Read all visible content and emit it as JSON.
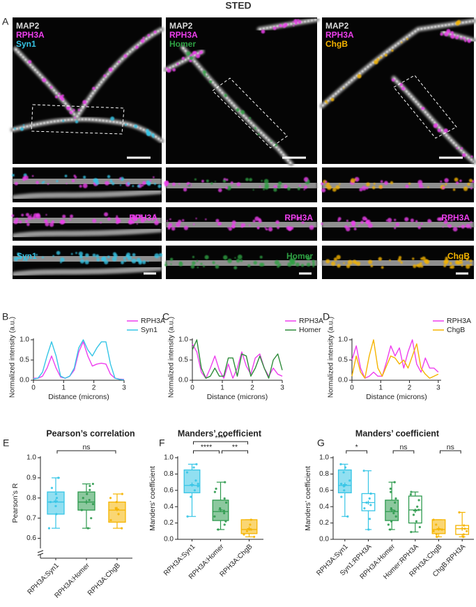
{
  "title": "STED",
  "panel_A": {
    "label": "A",
    "columns": [
      {
        "channels": [
          {
            "name": "MAP2",
            "color": "#d9d9d9"
          },
          {
            "name": "RPH3A",
            "color": "#ee3fee"
          },
          {
            "name": "Syn1",
            "color": "#36c5e6"
          }
        ]
      },
      {
        "channels": [
          {
            "name": "MAP2",
            "color": "#d9d9d9"
          },
          {
            "name": "RPH3A",
            "color": "#ee3fee"
          },
          {
            "name": "Homer",
            "color": "#2ea043"
          }
        ]
      },
      {
        "channels": [
          {
            "name": "MAP2",
            "color": "#d9d9d9"
          },
          {
            "name": "RPH3A",
            "color": "#ee3fee"
          },
          {
            "name": "ChgB",
            "color": "#f5b400"
          }
        ]
      }
    ]
  },
  "chart_data": [
    {
      "type": "line",
      "panel": "B",
      "x_label": "Distance (microns)",
      "y_label": "Normalized intensity (a.u.)",
      "x": [
        0,
        0.15,
        0.3,
        0.45,
        0.6,
        0.75,
        0.9,
        1.05,
        1.2,
        1.35,
        1.5,
        1.65,
        1.8,
        1.95,
        2.1,
        2.25,
        2.4,
        2.55,
        2.7,
        2.85,
        3.0
      ],
      "series": [
        {
          "name": "RPH3A",
          "color": "#ee3fee",
          "values": [
            0.05,
            0.05,
            0.1,
            0.3,
            0.6,
            0.3,
            0.08,
            0.05,
            0.1,
            0.25,
            0.7,
            0.95,
            0.6,
            0.35,
            0.4,
            0.42,
            0.4,
            0.15,
            0.05,
            0.03,
            0.02
          ]
        },
        {
          "name": "Syn1",
          "color": "#36c5e6",
          "values": [
            0.03,
            0.05,
            0.2,
            0.6,
            0.95,
            0.6,
            0.1,
            0.05,
            0.1,
            0.3,
            0.8,
            1.0,
            0.75,
            0.6,
            0.8,
            0.95,
            0.95,
            0.4,
            0.05,
            0.02,
            0.01
          ]
        }
      ],
      "xlim": [
        0,
        3
      ],
      "xticks": [
        0,
        1,
        2,
        3
      ],
      "ylim": [
        0,
        1
      ],
      "yticks": [
        {
          "value": 0,
          "label": "0.0"
        },
        {
          "value": 0.5,
          "label": "0.5"
        },
        {
          "value": 1,
          "label": "1.0"
        }
      ]
    },
    {
      "type": "line",
      "panel": "C",
      "x_label": "Distance (microns)",
      "y_label": "Normalized intensity (a.u.)",
      "x": [
        0,
        0.15,
        0.3,
        0.45,
        0.6,
        0.75,
        0.9,
        1.05,
        1.2,
        1.35,
        1.5,
        1.65,
        1.8,
        1.95,
        2.1,
        2.25,
        2.4,
        2.55,
        2.7,
        2.85,
        3.0
      ],
      "series": [
        {
          "name": "RPH3A",
          "color": "#ee3fee",
          "values": [
            0.9,
            0.7,
            0.2,
            0.05,
            0.3,
            0.6,
            0.25,
            0.05,
            0.4,
            0.05,
            0.3,
            0.7,
            0.35,
            0.15,
            0.55,
            0.65,
            0.3,
            0.1,
            0.3,
            0.15,
            0.1
          ]
        },
        {
          "name": "Homer",
          "color": "#2e8b3a",
          "values": [
            0.75,
            1.0,
            0.3,
            0.05,
            0.1,
            0.3,
            0.1,
            0.1,
            0.55,
            0.55,
            0.1,
            0.65,
            0.6,
            0.1,
            0.3,
            0.6,
            0.3,
            0.05,
            0.5,
            0.65,
            0.25
          ]
        }
      ],
      "xlim": [
        0,
        3
      ],
      "xticks": [
        0,
        1,
        2,
        3
      ],
      "ylim": [
        0,
        1
      ],
      "yticks": [
        {
          "value": 0,
          "label": "0.0"
        },
        {
          "value": 0.5,
          "label": "0.5"
        },
        {
          "value": 1,
          "label": "1.0"
        }
      ]
    },
    {
      "type": "line",
      "panel": "D",
      "x_label": "Distance (microns)",
      "y_label": "Normalized intensity (a.u.)",
      "x": [
        0,
        0.15,
        0.3,
        0.45,
        0.6,
        0.75,
        0.9,
        1.05,
        1.2,
        1.35,
        1.5,
        1.65,
        1.8,
        1.95,
        2.1,
        2.25,
        2.4,
        2.55,
        2.7,
        2.85,
        3.0
      ],
      "series": [
        {
          "name": "RPH3A",
          "color": "#ee3fee",
          "values": [
            0.5,
            0.85,
            0.3,
            0.05,
            0.1,
            0.2,
            0.1,
            0.1,
            0.45,
            0.85,
            0.6,
            0.8,
            0.3,
            0.7,
            1.0,
            0.4,
            0.2,
            0.55,
            0.3,
            0.3,
            0.2
          ]
        },
        {
          "name": "ChgB",
          "color": "#f5b400",
          "values": [
            0.1,
            0.6,
            0.2,
            0.05,
            0.6,
            1.0,
            0.3,
            0.1,
            0.35,
            0.6,
            0.55,
            0.4,
            0.5,
            0.3,
            0.6,
            0.9,
            0.3,
            0.15,
            0.05,
            0.1,
            0.15
          ]
        }
      ],
      "xlim": [
        0,
        3.1
      ],
      "xticks": [
        0,
        1,
        2,
        3
      ],
      "ylim": [
        0,
        1
      ],
      "yticks": [
        {
          "value": 0,
          "label": "0.0"
        },
        {
          "value": 0.5,
          "label": "0.5"
        },
        {
          "value": 1,
          "label": "1.0"
        }
      ]
    },
    {
      "type": "box",
      "panel": "E",
      "title": "Pearson’s correlation",
      "y_label": "Pearson’s R",
      "categories": [
        "RPH3A:Syn1",
        "RPH3A:Homer",
        "RPH3A:ChgB"
      ],
      "boxes": [
        {
          "min": 0.65,
          "q1": 0.72,
          "median": 0.78,
          "q3": 0.83,
          "max": 0.9,
          "mean": 0.785,
          "color": "#36c5e6",
          "filled": true,
          "points": [
            0.65,
            0.72,
            0.76,
            0.78,
            0.8,
            0.82,
            0.85,
            0.9
          ]
        },
        {
          "min": 0.65,
          "q1": 0.74,
          "median": 0.78,
          "q3": 0.83,
          "max": 0.87,
          "mean": 0.78,
          "color": "#2e9a4e",
          "filled": true,
          "points": [
            0.65,
            0.7,
            0.74,
            0.77,
            0.79,
            0.8,
            0.82,
            0.84,
            0.86,
            0.87
          ]
        },
        {
          "min": 0.65,
          "q1": 0.68,
          "median": 0.74,
          "q3": 0.78,
          "max": 0.82,
          "mean": 0.745,
          "color": "#f5b400",
          "filled": true,
          "points": [
            0.65,
            0.69,
            0.72,
            0.75,
            0.78,
            0.8,
            0.82
          ]
        }
      ],
      "brackets": [
        {
          "categories": [
            "RPH3A:Syn1",
            "RPH3A:ChgB"
          ],
          "label": "ns"
        }
      ],
      "ylim": [
        0.55,
        1.0
      ],
      "axis_break": true,
      "yticks": [
        {
          "value": 0.6,
          "label": "0.6"
        },
        {
          "value": 0.7,
          "label": "0.7"
        },
        {
          "value": 0.8,
          "label": "0.8"
        },
        {
          "value": 0.9,
          "label": "0.9"
        },
        {
          "value": 1.0,
          "label": "1.0"
        }
      ]
    },
    {
      "type": "box",
      "panel": "F",
      "title": "Manders’ coefficient",
      "y_label": "Manders’ coefficient",
      "categories": [
        "RPH3A:Syn1",
        "RPH3A:Homer",
        "RPH3A:ChgB"
      ],
      "boxes": [
        {
          "min": 0.28,
          "q1": 0.57,
          "median": 0.66,
          "q3": 0.85,
          "max": 0.92,
          "mean": 0.67,
          "color": "#36c5e6",
          "filled": true,
          "points": [
            0.28,
            0.52,
            0.6,
            0.65,
            0.68,
            0.72,
            0.82,
            0.88,
            0.92
          ]
        },
        {
          "min": 0.12,
          "q1": 0.23,
          "median": 0.34,
          "q3": 0.48,
          "max": 0.7,
          "mean": 0.36,
          "color": "#2e9a4e",
          "filled": true,
          "points": [
            0.12,
            0.18,
            0.22,
            0.28,
            0.32,
            0.35,
            0.38,
            0.45,
            0.5,
            0.58,
            0.62,
            0.7
          ]
        },
        {
          "min": 0.03,
          "q1": 0.07,
          "median": 0.12,
          "q3": 0.24,
          "max": 0.24,
          "mean": 0.13,
          "color": "#f5b400",
          "filled": true,
          "points": [
            0.03,
            0.06,
            0.1,
            0.12,
            0.18,
            0.24
          ]
        }
      ],
      "brackets": [
        {
          "categories": [
            "RPH3A:Syn1",
            "RPH3A:Homer"
          ],
          "label": "****"
        },
        {
          "categories": [
            "RPH3A:Homer",
            "RPH3A:ChgB"
          ],
          "label": "**"
        },
        {
          "categories": [
            "RPH3A:Syn1",
            "RPH3A:ChgB"
          ],
          "label": "****"
        }
      ],
      "ylim": [
        0,
        1.0
      ],
      "yticks": [
        {
          "value": 0,
          "label": "0.0"
        },
        {
          "value": 0.2,
          "label": "0.2"
        },
        {
          "value": 0.4,
          "label": "0.4"
        },
        {
          "value": 0.6,
          "label": "0.6"
        },
        {
          "value": 0.8,
          "label": "0.8"
        },
        {
          "value": 1.0,
          "label": "1.0"
        }
      ]
    },
    {
      "type": "box",
      "panel": "G",
      "title": "Manders’ coefficient",
      "y_label": "Manders’ coefficient",
      "categories": [
        "RPH3A:Syn1",
        "Syn1:RPH3A",
        "RPH3A:Homer",
        "Homer:RPH3A",
        "RPH3A:ChgB",
        "ChgB:RPH3A"
      ],
      "boxes": [
        {
          "min": 0.28,
          "q1": 0.57,
          "median": 0.66,
          "q3": 0.85,
          "max": 0.92,
          "mean": 0.67,
          "color": "#36c5e6",
          "filled": true,
          "points": [
            0.28,
            0.52,
            0.6,
            0.65,
            0.68,
            0.72,
            0.82,
            0.88,
            0.92
          ]
        },
        {
          "min": 0.12,
          "q1": 0.35,
          "median": 0.45,
          "q3": 0.56,
          "max": 0.84,
          "mean": 0.45,
          "color": "#36c5e6",
          "filled": false,
          "points": [
            0.12,
            0.25,
            0.38,
            0.42,
            0.45,
            0.5,
            0.56,
            0.84
          ]
        },
        {
          "min": 0.12,
          "q1": 0.23,
          "median": 0.34,
          "q3": 0.48,
          "max": 0.7,
          "mean": 0.36,
          "color": "#2e9a4e",
          "filled": true,
          "points": [
            0.12,
            0.18,
            0.22,
            0.28,
            0.32,
            0.35,
            0.38,
            0.45,
            0.5,
            0.58,
            0.62,
            0.7
          ]
        },
        {
          "min": 0.09,
          "q1": 0.2,
          "median": 0.36,
          "q3": 0.53,
          "max": 0.58,
          "mean": 0.35,
          "color": "#2e9a4e",
          "filled": false,
          "points": [
            0.09,
            0.15,
            0.22,
            0.3,
            0.36,
            0.4,
            0.48,
            0.55,
            0.58
          ]
        },
        {
          "min": 0.03,
          "q1": 0.07,
          "median": 0.12,
          "q3": 0.24,
          "max": 0.24,
          "mean": 0.13,
          "color": "#f5b400",
          "filled": true,
          "points": [
            0.03,
            0.06,
            0.1,
            0.12,
            0.18,
            0.24
          ]
        },
        {
          "min": 0.03,
          "q1": 0.06,
          "median": 0.13,
          "q3": 0.17,
          "max": 0.33,
          "mean": 0.13,
          "color": "#f5b400",
          "filled": false,
          "points": [
            0.03,
            0.06,
            0.1,
            0.13,
            0.17,
            0.33
          ]
        }
      ],
      "brackets": [
        {
          "categories": [
            "RPH3A:Syn1",
            "Syn1:RPH3A"
          ],
          "label": "*"
        },
        {
          "categories": [
            "RPH3A:Homer",
            "Homer:RPH3A"
          ],
          "label": "ns"
        },
        {
          "categories": [
            "RPH3A:ChgB",
            "ChgB:RPH3A"
          ],
          "label": "ns"
        }
      ],
      "ylim": [
        0,
        1.0
      ],
      "yticks": [
        {
          "value": 0,
          "label": "0.0"
        },
        {
          "value": 0.2,
          "label": "0.2"
        },
        {
          "value": 0.4,
          "label": "0.4"
        },
        {
          "value": 0.6,
          "label": "0.6"
        },
        {
          "value": 0.8,
          "label": "0.8"
        },
        {
          "value": 1.0,
          "label": "1.0"
        }
      ]
    }
  ]
}
